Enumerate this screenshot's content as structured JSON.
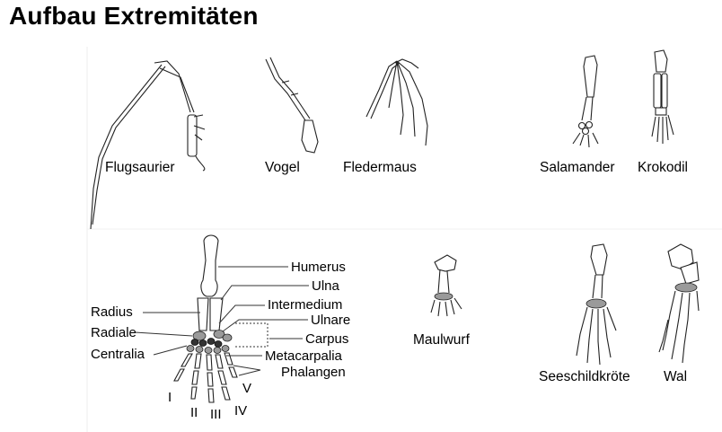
{
  "title": "Aufbau Extremitäten",
  "animals": {
    "flugsaurier": "Flugsaurier",
    "vogel": "Vogel",
    "fledermaus": "Fledermaus",
    "salamander": "Salamander",
    "krokodil": "Krokodil",
    "maulwurf": "Maulwurf",
    "seeschildkroete": "Seeschildkröte",
    "wal": "Wal"
  },
  "parts": {
    "humerus": "Humerus",
    "ulna": "Ulna",
    "intermedium": "Intermedium",
    "ulnare": "Ulnare",
    "carpus": "Carpus",
    "metacarpalia": "Metacarpalia",
    "phalangen": "Phalangen",
    "radius": "Radius",
    "radiale": "Radiale",
    "centralia": "Centralia"
  },
  "digits": [
    "I",
    "II",
    "III",
    "IV",
    "V"
  ]
}
